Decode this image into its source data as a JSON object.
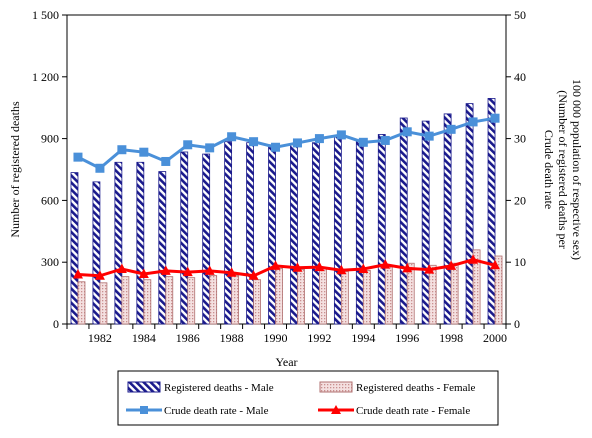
{
  "chart_data": {
    "type": "bar",
    "title": "",
    "xlabel": "Year",
    "ylabel": "Number of registered deaths",
    "y2label": "Crude death rate",
    "y2label_sub1": "(Number of registered deaths per",
    "y2label_sub2": "100 000 population of respective sex)",
    "ylim": [
      0,
      1500
    ],
    "y_ticks": [
      0,
      300,
      600,
      900,
      1200,
      1500
    ],
    "y_tick_labels": [
      "0",
      "300",
      "600",
      "900",
      "1 200",
      "1 500"
    ],
    "y2lim": [
      0,
      50
    ],
    "y2_ticks": [
      0,
      10,
      20,
      30,
      40,
      50
    ],
    "y2_tick_labels": [
      "0",
      "10",
      "20",
      "30",
      "40",
      "50"
    ],
    "categories": [
      "1981",
      "1982",
      "1983",
      "1984",
      "1985",
      "1986",
      "1987",
      "1988",
      "1989",
      "1990",
      "1991",
      "1992",
      "1993",
      "1994",
      "1995",
      "1996",
      "1997",
      "1998",
      "1999",
      "2000"
    ],
    "x_tick_labels": [
      "",
      "1982",
      "",
      "1984",
      "",
      "1986",
      "",
      "1988",
      "",
      "1990",
      "",
      "1992",
      "",
      "1994",
      "",
      "1996",
      "",
      "1998",
      "",
      "2000"
    ],
    "bar_series": [
      {
        "name": "Registered deaths - Male",
        "color": "#1a1a8c",
        "values": [
          735,
          690,
          785,
          785,
          740,
          835,
          825,
          885,
          880,
          870,
          870,
          880,
          915,
          890,
          920,
          1000,
          985,
          1020,
          1070,
          1095
        ]
      },
      {
        "name": "Registered deaths - Female",
        "color": "#e8c8c8",
        "values": [
          205,
          200,
          230,
          215,
          230,
          225,
          235,
          235,
          215,
          270,
          265,
          270,
          255,
          260,
          285,
          295,
          285,
          295,
          360,
          330
        ]
      }
    ],
    "line_series": [
      {
        "name": "Crude death rate - Male",
        "color": "#4a90d9",
        "marker": "square",
        "values": [
          27.0,
          25.2,
          28.2,
          27.8,
          26.3,
          29.0,
          28.5,
          30.3,
          29.5,
          28.6,
          29.3,
          30.0,
          30.6,
          29.4,
          29.7,
          31.1,
          30.4,
          31.5,
          32.7,
          33.3
        ]
      },
      {
        "name": "Crude death rate - Female",
        "color": "#ff0000",
        "marker": "triangle",
        "values": [
          8.0,
          7.8,
          8.9,
          8.1,
          8.6,
          8.4,
          8.6,
          8.3,
          7.8,
          9.4,
          9.1,
          9.2,
          8.7,
          8.9,
          9.6,
          9.0,
          8.8,
          9.4,
          10.4,
          9.5
        ]
      }
    ],
    "legend_position": "bottom",
    "grid": false
  }
}
